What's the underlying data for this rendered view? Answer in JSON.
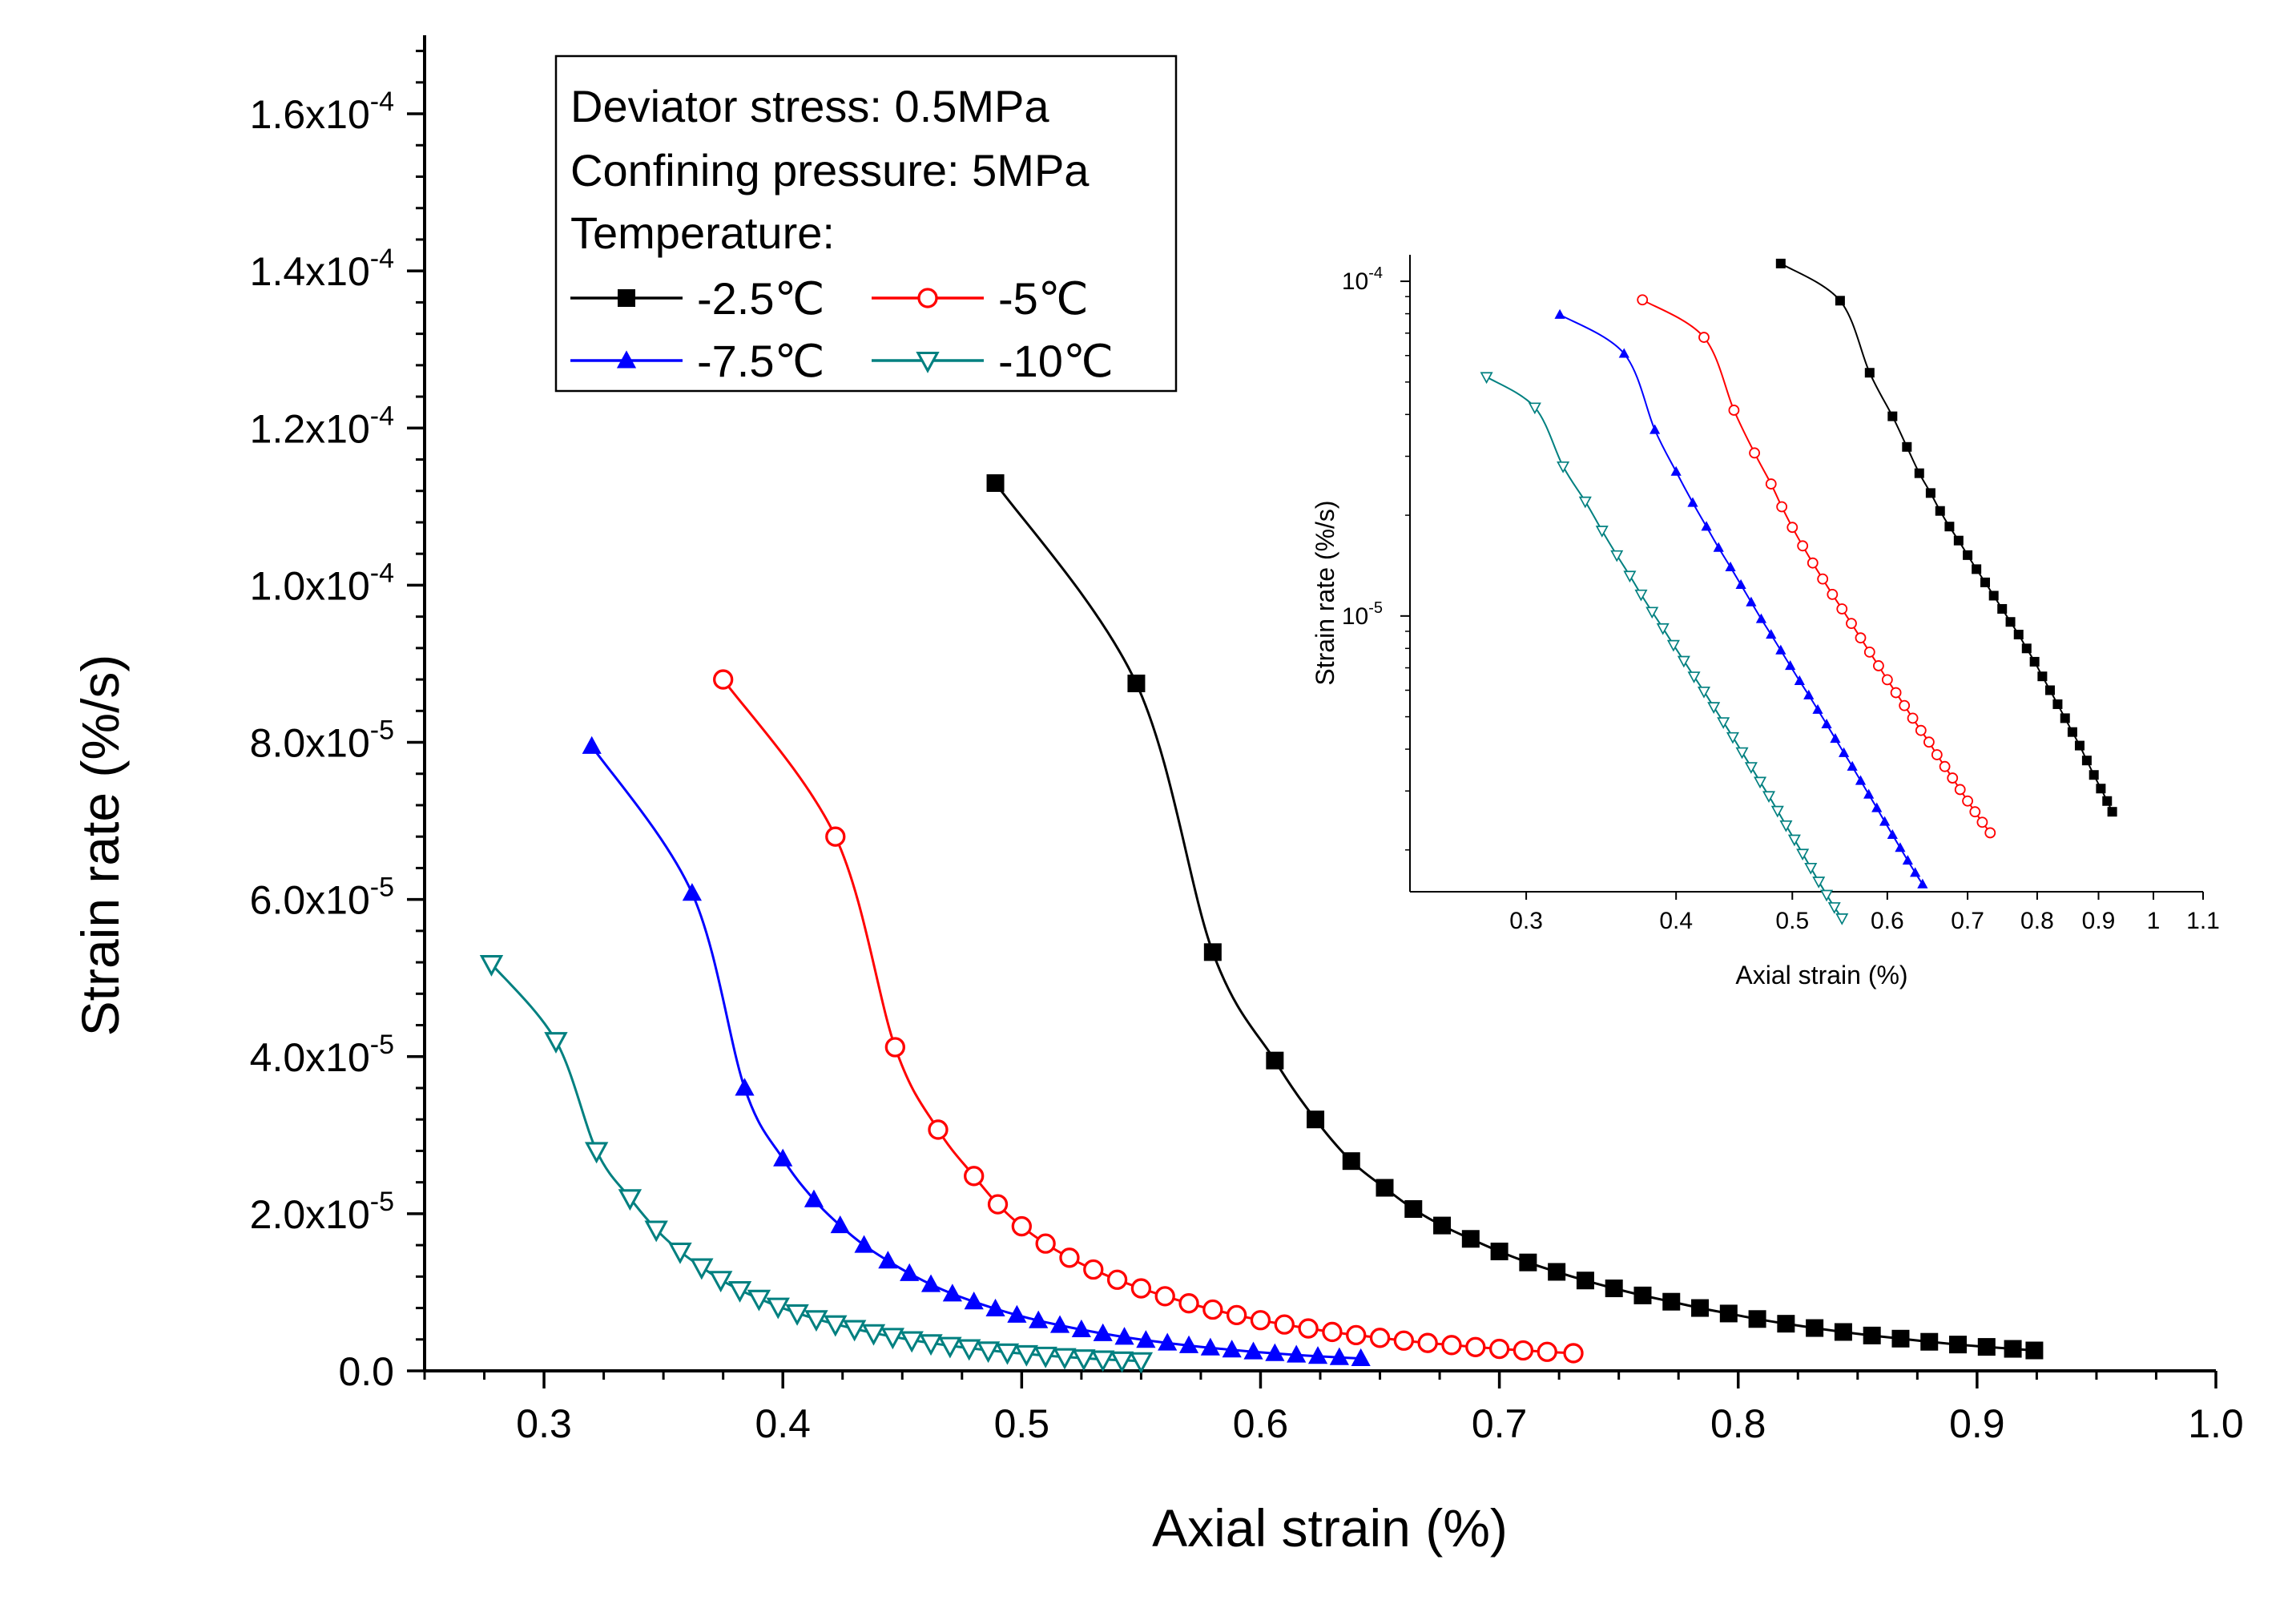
{
  "chart_data": [
    {
      "type": "line",
      "title": "",
      "xlabel": "Axial strain (%)",
      "ylabel": "Strain rate (%/s)",
      "xlim": [
        0.25,
        1.0
      ],
      "ylim": [
        0,
        0.00017
      ],
      "x_ticks": [
        {
          "v": 0.3,
          "label": "0.3"
        },
        {
          "v": 0.4,
          "label": "0.4"
        },
        {
          "v": 0.5,
          "label": "0.5"
        },
        {
          "v": 0.6,
          "label": "0.6"
        },
        {
          "v": 0.7,
          "label": "0.7"
        },
        {
          "v": 0.8,
          "label": "0.8"
        },
        {
          "v": 0.9,
          "label": "0.9"
        },
        {
          "v": 1.0,
          "label": "1.0"
        }
      ],
      "y_ticks": [
        {
          "v": 0,
          "label": "0.0"
        },
        {
          "v": 2e-05,
          "label": "2.0x10",
          "exp": "-5"
        },
        {
          "v": 4e-05,
          "label": "4.0x10",
          "exp": "-5"
        },
        {
          "v": 6e-05,
          "label": "6.0x10",
          "exp": "-5"
        },
        {
          "v": 8e-05,
          "label": "8.0x10",
          "exp": "-5"
        },
        {
          "v": 0.0001,
          "label": "1.0x10",
          "exp": "-4"
        },
        {
          "v": 0.00012,
          "label": "1.2x10",
          "exp": "-4"
        },
        {
          "v": 0.00014,
          "label": "1.4x10",
          "exp": "-4"
        },
        {
          "v": 0.00016,
          "label": "1.6x10",
          "exp": "-4"
        }
      ],
      "annotations": [
        "Deviator stress: 0.5MPa",
        "Confining pressure: 5MPa",
        "Temperature:"
      ],
      "legend_position": "top-left",
      "series": [
        {
          "name": "-2.5℃",
          "color": "#000000",
          "marker": "square",
          "x": [
            0.489,
            0.548,
            0.58,
            0.606,
            0.623,
            0.638,
            0.652,
            0.664,
            0.676,
            0.688,
            0.7,
            0.712,
            0.724,
            0.736,
            0.748,
            0.76,
            0.772,
            0.784,
            0.796,
            0.808,
            0.82,
            0.832,
            0.844,
            0.856,
            0.868,
            0.88,
            0.892,
            0.904,
            0.915,
            0.924
          ],
          "y": [
            0.000113,
            8.75e-05,
            5.33e-05,
            3.95e-05,
            3.2e-05,
            2.67e-05,
            2.33e-05,
            2.06e-05,
            1.85e-05,
            1.68e-05,
            1.52e-05,
            1.38e-05,
            1.26e-05,
            1.15e-05,
            1.05e-05,
            9.6e-06,
            8.8e-06,
            8e-06,
            7.3e-06,
            6.6e-06,
            6e-06,
            5.45e-06,
            4.95e-06,
            4.5e-06,
            4.1e-06,
            3.7e-06,
            3.35e-06,
            3.05e-06,
            2.8e-06,
            2.6e-06
          ]
        },
        {
          "name": "-5℃",
          "color": "#ff0000",
          "marker": "circle-open",
          "x": [
            0.375,
            0.422,
            0.447,
            0.465,
            0.48,
            0.49,
            0.5,
            0.51,
            0.52,
            0.53,
            0.54,
            0.55,
            0.56,
            0.57,
            0.58,
            0.59,
            0.6,
            0.61,
            0.62,
            0.63,
            0.64,
            0.65,
            0.66,
            0.67,
            0.68,
            0.69,
            0.7,
            0.71,
            0.72,
            0.731
          ],
          "y": [
            8.8e-05,
            6.8e-05,
            4.12e-05,
            3.07e-05,
            2.48e-05,
            2.12e-05,
            1.84e-05,
            1.62e-05,
            1.44e-05,
            1.29e-05,
            1.16e-05,
            1.05e-05,
            9.5e-06,
            8.6e-06,
            7.8e-06,
            7.1e-06,
            6.45e-06,
            5.9e-06,
            5.4e-06,
            4.95e-06,
            4.55e-06,
            4.2e-06,
            3.85e-06,
            3.55e-06,
            3.28e-06,
            3.03e-06,
            2.8e-06,
            2.6e-06,
            2.42e-06,
            2.25e-06
          ]
        },
        {
          "name": "-7.5℃",
          "color": "#0000ff",
          "marker": "triangle-up",
          "x": [
            0.32,
            0.362,
            0.384,
            0.4,
            0.413,
            0.424,
            0.434,
            0.444,
            0.453,
            0.462,
            0.471,
            0.48,
            0.489,
            0.498,
            0.507,
            0.516,
            0.525,
            0.534,
            0.543,
            0.552,
            0.561,
            0.57,
            0.579,
            0.588,
            0.597,
            0.606,
            0.615,
            0.624,
            0.633,
            0.642
          ],
          "y": [
            7.95e-05,
            6.08e-05,
            3.6e-05,
            2.7e-05,
            2.18e-05,
            1.85e-05,
            1.6e-05,
            1.4e-05,
            1.24e-05,
            1.1e-05,
            9.8e-06,
            8.8e-06,
            7.9e-06,
            7.1e-06,
            6.4e-06,
            5.8e-06,
            5.25e-06,
            4.75e-06,
            4.3e-06,
            3.9e-06,
            3.55e-06,
            3.22e-06,
            2.93e-06,
            2.67e-06,
            2.43e-06,
            2.22e-06,
            2.03e-06,
            1.86e-06,
            1.71e-06,
            1.58e-06
          ]
        },
        {
          "name": "-10℃",
          "color": "#008080",
          "marker": "triangle-down-open",
          "x": [
            0.278,
            0.305,
            0.322,
            0.336,
            0.347,
            0.357,
            0.366,
            0.374,
            0.382,
            0.39,
            0.398,
            0.406,
            0.414,
            0.422,
            0.43,
            0.438,
            0.446,
            0.454,
            0.462,
            0.47,
            0.478,
            0.486,
            0.494,
            0.502,
            0.51,
            0.518,
            0.526,
            0.534,
            0.542,
            0.55
          ],
          "y": [
            5.18e-05,
            4.2e-05,
            2.8e-05,
            2.2e-05,
            1.8e-05,
            1.52e-05,
            1.32e-05,
            1.16e-05,
            1.03e-05,
            9.2e-06,
            8.2e-06,
            7.35e-06,
            6.6e-06,
            5.95e-06,
            5.35e-06,
            4.82e-06,
            4.35e-06,
            3.92e-06,
            3.54e-06,
            3.2e-06,
            2.9e-06,
            2.62e-06,
            2.37e-06,
            2.15e-06,
            1.95e-06,
            1.77e-06,
            1.61e-06,
            1.47e-06,
            1.35e-06,
            1.25e-06
          ]
        }
      ]
    },
    {
      "type": "line",
      "subtype": "inset-log-log",
      "xlabel": "Axial strain (%)",
      "ylabel": "Strain rate (%/s)",
      "x_scale": "log",
      "y_scale": "log",
      "xlim": [
        0.24,
        1.1
      ],
      "ylim": [
        1.5e-06,
        0.00012
      ],
      "x_ticks": [
        {
          "v": 0.3,
          "label": "0.3"
        },
        {
          "v": 0.4,
          "label": "0.4"
        },
        {
          "v": 0.5,
          "label": "0.5"
        },
        {
          "v": 0.6,
          "label": "0.6"
        },
        {
          "v": 0.7,
          "label": "0.7"
        },
        {
          "v": 0.8,
          "label": "0.8"
        },
        {
          "v": 0.9,
          "label": "0.9"
        },
        {
          "v": 1.0,
          "label": "1"
        },
        {
          "v": 1.1,
          "label": "1.1"
        }
      ],
      "y_ticks": [
        {
          "v": 1e-05,
          "label": "10",
          "exp": "-5"
        },
        {
          "v": 0.0001,
          "label": "10",
          "exp": "-4"
        }
      ],
      "series_ref": "same as main chart series"
    }
  ]
}
